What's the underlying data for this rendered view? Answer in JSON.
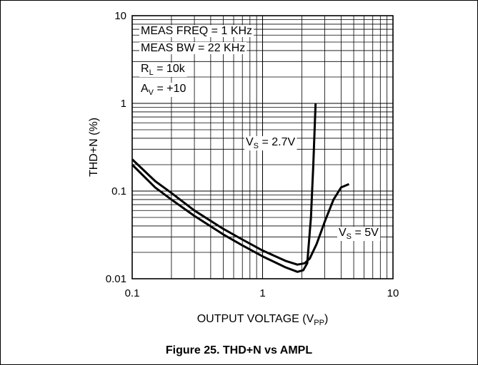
{
  "figure": {
    "caption": "Figure 25. THD+N vs AMPL"
  },
  "chart_data": {
    "type": "line",
    "xscale": "log",
    "yscale": "log",
    "xlim": [
      0.1,
      10
    ],
    "ylim": [
      0.01,
      10
    ],
    "x_ticks": [
      "0.1",
      "1",
      "10"
    ],
    "y_ticks": [
      "0.01",
      "0.1",
      "1",
      "10"
    ],
    "grid": true,
    "xlabel": {
      "main": "OUTPUT VOLTAGE (V",
      "sub": "PP",
      "close": ")"
    },
    "ylabel": "THD+N (%)",
    "conditions": [
      {
        "text": "MEAS FREQ = 1 KHz",
        "sub": "",
        "rest": ""
      },
      {
        "text": "MEAS BW = 22 KHz",
        "sub": "",
        "rest": ""
      },
      {
        "text": "R",
        "sub": "L",
        "rest": " = 10k"
      },
      {
        "text": "A",
        "sub": "V",
        "rest": " = +10"
      }
    ],
    "series": [
      {
        "name": "V_S = 2.7V",
        "label": {
          "main": "V",
          "sub": "S",
          "rest": " = 2.7V"
        },
        "points": [
          [
            0.1,
            0.2
          ],
          [
            0.15,
            0.11
          ],
          [
            0.2,
            0.08
          ],
          [
            0.3,
            0.052
          ],
          [
            0.5,
            0.032
          ],
          [
            0.7,
            0.024
          ],
          [
            1.0,
            0.018
          ],
          [
            1.5,
            0.0135
          ],
          [
            1.85,
            0.012
          ],
          [
            2.05,
            0.0125
          ],
          [
            2.2,
            0.015
          ],
          [
            2.35,
            0.05
          ],
          [
            2.45,
            0.2
          ],
          [
            2.55,
            1.0
          ]
        ]
      },
      {
        "name": "V_S = 5V",
        "label": {
          "main": "V",
          "sub": "S",
          "rest": " = 5V"
        },
        "points": [
          [
            0.1,
            0.23
          ],
          [
            0.15,
            0.13
          ],
          [
            0.2,
            0.095
          ],
          [
            0.3,
            0.06
          ],
          [
            0.5,
            0.037
          ],
          [
            0.7,
            0.028
          ],
          [
            1.0,
            0.021
          ],
          [
            1.5,
            0.016
          ],
          [
            1.85,
            0.0145
          ],
          [
            2.1,
            0.015
          ],
          [
            2.3,
            0.017
          ],
          [
            2.6,
            0.025
          ],
          [
            3.0,
            0.045
          ],
          [
            3.5,
            0.08
          ],
          [
            4.0,
            0.11
          ],
          [
            4.6,
            0.12
          ]
        ]
      }
    ]
  }
}
